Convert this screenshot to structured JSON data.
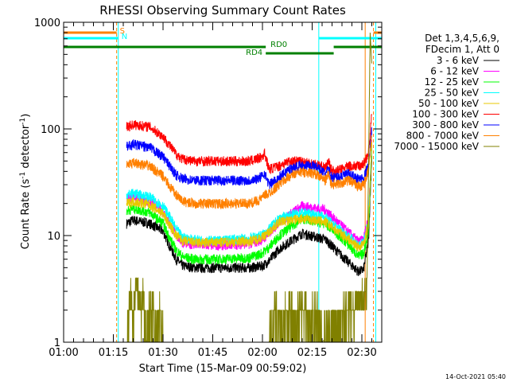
{
  "chart_data": {
    "type": "line",
    "title": "RHESSI Observing Summary Count Rates",
    "xlabel": "Start Time (15-Mar-09 00:59:02)",
    "ylabel_parts": [
      "Count Rate (s",
      "-1",
      " detector",
      "-1",
      ")"
    ],
    "y_scale": "log",
    "ylim": [
      1,
      1000
    ],
    "xlim_minutes": [
      0,
      96
    ],
    "x_ticks": [
      {
        "t": 0,
        "label": "01:00"
      },
      {
        "t": 15,
        "label": "01:15"
      },
      {
        "t": 30,
        "label": "01:30"
      },
      {
        "t": 45,
        "label": "01:45"
      },
      {
        "t": 60,
        "label": "02:00"
      },
      {
        "t": 75,
        "label": "02:15"
      },
      {
        "t": 90,
        "label": "02:30"
      }
    ],
    "y_tick_labels": [
      {
        "value": 1,
        "label": "1"
      },
      {
        "value": 10,
        "label": "10"
      },
      {
        "value": 100,
        "label": "100"
      },
      {
        "value": 1000,
        "label": "1000"
      }
    ],
    "legend_header": [
      "Det 1,3,4,5,6,9,",
      "FDecim 1, Att 0"
    ],
    "timestamp": "14-Oct-2021 05:40",
    "series": [
      {
        "name": "3 - 6 keV",
        "color": "#000000",
        "x": [
          19,
          21,
          26,
          30,
          32,
          34,
          36,
          40,
          46,
          56,
          58,
          60,
          62,
          65,
          72,
          79,
          81,
          85,
          89,
          90.5,
          92,
          93
        ],
        "y": [
          13,
          14,
          13,
          11,
          8,
          6,
          5.2,
          5.0,
          5.0,
          5.0,
          5.1,
          5.2,
          5.8,
          7.5,
          10.5,
          9.2,
          8,
          6,
          4.6,
          4.8,
          9,
          60
        ]
      },
      {
        "name": "6 - 12 keV",
        "color": "#ff00ff",
        "x": [
          19,
          21,
          26,
          30,
          32,
          34,
          36,
          40,
          46,
          56,
          58,
          60,
          62,
          65,
          72,
          79,
          81,
          85,
          89,
          90.5,
          92,
          93
        ],
        "y": [
          22,
          23,
          21,
          17,
          13,
          10,
          8.6,
          8.2,
          8.1,
          8.4,
          8.7,
          9.2,
          10.5,
          13.5,
          19,
          17.5,
          15,
          11.5,
          8.8,
          9.2,
          15,
          75
        ]
      },
      {
        "name": "12 - 25 keV",
        "color": "#00ff00",
        "x": [
          19,
          21,
          26,
          30,
          32,
          34,
          36,
          40,
          46,
          56,
          58,
          60,
          62,
          65,
          72,
          79,
          81,
          85,
          89,
          90.5,
          92,
          93
        ],
        "y": [
          17,
          18,
          16.5,
          13,
          9.5,
          7.3,
          6.3,
          6.0,
          6.0,
          6.2,
          6.5,
          6.9,
          7.8,
          10,
          14.5,
          13,
          11.5,
          8.8,
          6.4,
          6.8,
          11,
          70
        ]
      },
      {
        "name": "25 - 50 keV",
        "color": "#00ffff",
        "x": [
          19,
          21,
          26,
          30,
          32,
          34,
          36,
          40,
          46,
          56,
          58,
          60,
          62,
          65,
          72,
          79,
          81,
          85,
          89,
          90.5,
          92,
          93
        ],
        "y": [
          24,
          25,
          23,
          19,
          15,
          11.5,
          9.6,
          9.1,
          9.0,
          9.4,
          9.8,
          10.2,
          11.5,
          14.5,
          16.5,
          15,
          13,
          10.5,
          8.2,
          8.6,
          14,
          78
        ]
      },
      {
        "name": "50 - 100 keV",
        "color": "#e8c800",
        "x": [
          19,
          21,
          26,
          30,
          32,
          34,
          36,
          40,
          46,
          56,
          58,
          60,
          62,
          65,
          72,
          79,
          81,
          85,
          89,
          90.5,
          92,
          93
        ],
        "y": [
          20,
          21,
          19.5,
          16,
          12.5,
          10,
          8.9,
          8.6,
          8.6,
          8.9,
          9.2,
          9.7,
          10.8,
          13.5,
          14.5,
          13.5,
          12,
          9.8,
          7.8,
          8.2,
          13,
          72
        ]
      },
      {
        "name": "100 - 300 keV",
        "color": "#ff0000",
        "x": [
          19,
          21,
          26,
          30,
          32,
          34,
          36,
          40,
          46,
          56,
          58,
          60,
          60.6,
          62,
          65,
          68,
          72,
          76,
          79,
          80,
          80.6,
          82,
          86,
          89,
          90.5,
          92,
          93
        ],
        "y": [
          105,
          110,
          105,
          85,
          70,
          58,
          52,
          50,
          50,
          50,
          52,
          55,
          60,
          42,
          45,
          50,
          50,
          47,
          43,
          50,
          42,
          40,
          45,
          45,
          47,
          60,
          140
        ]
      },
      {
        "name": "300 - 800 keV",
        "color": "#0000ff",
        "x": [
          19,
          21,
          26,
          30,
          32,
          34,
          36,
          40,
          46,
          56,
          58,
          60,
          60.6,
          62,
          65,
          68,
          72,
          76,
          79,
          80,
          80.6,
          82,
          86,
          89,
          90.5,
          92,
          93
        ],
        "y": [
          68,
          72,
          67,
          55,
          45,
          37,
          34,
          33,
          33,
          33,
          34,
          36,
          39,
          30,
          35,
          42,
          46,
          45,
          38,
          42,
          36,
          35,
          38,
          34,
          35,
          45,
          100
        ]
      },
      {
        "name": "800 - 7000 keV",
        "color": "#ff8000",
        "x": [
          19,
          21,
          26,
          30,
          32,
          34,
          36,
          40,
          46,
          56,
          58,
          60,
          60.6,
          62,
          65,
          68,
          72,
          76,
          79,
          80,
          80.6,
          82,
          86,
          89,
          90.5,
          92,
          93
        ],
        "y": [
          46,
          48,
          45,
          36,
          29,
          24,
          21,
          20,
          20,
          20,
          21,
          22.5,
          24,
          25,
          30,
          36,
          40,
          38,
          33,
          38,
          31,
          30,
          33,
          29,
          30,
          40,
          90
        ]
      },
      {
        "name": "7000 - 15000 keV",
        "color": "#808000",
        "x": [
          19,
          19.5,
          20,
          21,
          22,
          23,
          24,
          25,
          26,
          27,
          28,
          29,
          30,
          62,
          64,
          66,
          68,
          70,
          72,
          74,
          76,
          78,
          91.5,
          92,
          92.5,
          93
        ],
        "y": [
          1,
          2,
          3,
          2,
          4,
          2,
          3,
          1,
          2,
          2,
          1,
          2,
          1,
          1,
          2,
          1.5,
          2,
          1.5,
          2,
          1.5,
          2,
          1,
          3,
          40,
          800,
          400
        ]
      }
    ],
    "vertical_lines": [
      {
        "t": 16.0,
        "color": "#ff8000",
        "style": "dashed"
      },
      {
        "t": 16.5,
        "color": "#00ffff",
        "style": "solid"
      },
      {
        "t": 77.0,
        "color": "#00ffff",
        "style": "solid"
      },
      {
        "t": 91.0,
        "color": "#ff8000",
        "style": "solid"
      },
      {
        "t": 93.5,
        "color": "#ff8000",
        "style": "dashed"
      },
      {
        "t": 94.2,
        "color": "#00ffff",
        "style": "solid"
      }
    ],
    "flags": [
      {
        "label": "S",
        "color": "#ff8000",
        "segments": [
          [
            0,
            16.0
          ],
          [
            93.5,
            96
          ]
        ],
        "level": 1
      },
      {
        "label": "N",
        "color": "#00ffff",
        "segments": [
          [
            0,
            16.5
          ],
          [
            77.0,
            96
          ]
        ],
        "level": 2
      },
      {
        "label": "RD0",
        "color": "#008000",
        "segments": [
          [
            0,
            61
          ],
          [
            81.5,
            96
          ]
        ],
        "level": 3
      },
      {
        "label": "RD4",
        "color": "#008000",
        "segments": [
          [
            61,
            81.5
          ]
        ],
        "level": 4
      }
    ]
  }
}
